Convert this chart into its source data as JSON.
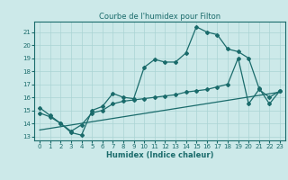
{
  "title": "Courbe de l'humidex pour Filton",
  "xlabel": "Humidex (Indice chaleur)",
  "xlim": [
    -0.5,
    23.5
  ],
  "ylim": [
    12.7,
    21.8
  ],
  "yticks": [
    13,
    14,
    15,
    16,
    17,
    18,
    19,
    20,
    21
  ],
  "xticks": [
    0,
    1,
    2,
    3,
    4,
    5,
    6,
    7,
    8,
    9,
    10,
    11,
    12,
    13,
    14,
    15,
    16,
    17,
    18,
    19,
    20,
    21,
    22,
    23
  ],
  "bg_color": "#cce9e9",
  "line_color": "#1a6b6b",
  "grid_color": "#aad4d4",
  "line1_x": [
    0,
    1,
    2,
    3,
    4,
    5,
    6,
    7,
    8,
    9,
    10,
    11,
    12,
    13,
    14,
    15,
    16,
    17,
    18,
    19,
    20,
    21,
    22,
    23
  ],
  "line1_y": [
    15.2,
    14.6,
    14.0,
    13.3,
    13.1,
    15.0,
    15.3,
    16.3,
    16.0,
    15.9,
    18.3,
    18.9,
    18.7,
    18.7,
    19.4,
    21.4,
    21.0,
    20.8,
    19.7,
    19.5,
    19.0,
    16.7,
    15.5,
    16.5
  ],
  "line2_x": [
    0,
    1,
    2,
    3,
    4,
    5,
    6,
    7,
    8,
    9,
    10,
    11,
    12,
    13,
    14,
    15,
    16,
    17,
    18,
    19,
    20,
    21,
    22,
    23
  ],
  "line2_y": [
    14.8,
    14.5,
    14.0,
    13.4,
    13.9,
    14.8,
    15.0,
    15.5,
    15.7,
    15.8,
    15.9,
    16.0,
    16.1,
    16.2,
    16.4,
    16.5,
    16.6,
    16.8,
    17.0,
    19.0,
    15.5,
    16.6,
    16.0,
    16.5
  ],
  "line3_x": [
    0,
    23
  ],
  "line3_y": [
    13.5,
    16.4
  ]
}
